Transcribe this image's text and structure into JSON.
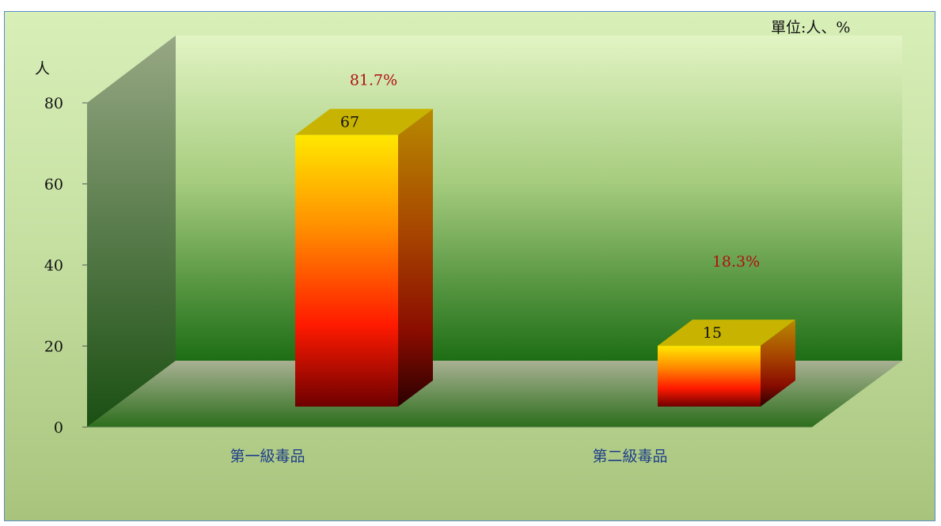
{
  "chart_data": {
    "type": "bar",
    "unit_label": "單位:人、%",
    "ylabel": "人",
    "categories": [
      "第一級毒品",
      "第二級毒品"
    ],
    "series": [
      {
        "values": [
          67,
          15
        ],
        "percent_labels": [
          "81.7%",
          "18.3%"
        ]
      }
    ],
    "ylim": [
      0,
      80
    ],
    "yticks": [
      0,
      20,
      40,
      60,
      80
    ],
    "grid": false,
    "legend": "none",
    "colors": {
      "bar_top": "#c8b400",
      "bar_gradient": [
        "#ffe800",
        "#ff8c00",
        "#ff1a00",
        "#6e0000"
      ],
      "back_wall": [
        "#e2f4c4",
        "#1d6e15"
      ],
      "side_wall": [
        "#8fa07a",
        "#1a4f12"
      ],
      "floor": [
        "#a5ad8e",
        "#2c6e1c"
      ],
      "pct_text": "#b01010",
      "category_text": "#1f3f8a"
    }
  }
}
